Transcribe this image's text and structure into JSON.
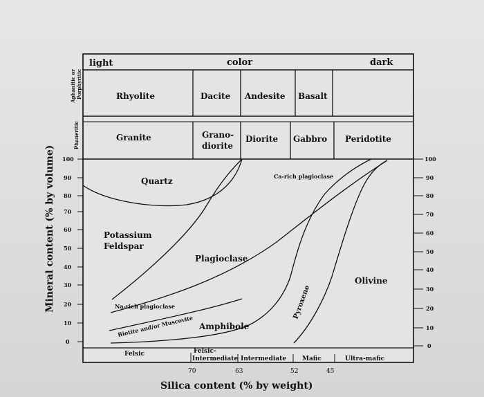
{
  "header": {
    "left": "light",
    "center": "color",
    "right": "dark"
  },
  "texture_labels": {
    "fine": "Aphanitic or Porphyritic",
    "coarse": "Phaneritic"
  },
  "rocks_fine": [
    "Rhyolite",
    "Dacite",
    "Andesite",
    "Basalt"
  ],
  "rocks_coarse": [
    "Granite",
    "Grano-diorite",
    "Diorite",
    "Gabbro",
    "Peridotite"
  ],
  "y_axis": {
    "label": "Mineral content (% by volume)",
    "ticks": [
      "100",
      "90",
      "80",
      "70",
      "60",
      "50",
      "40",
      "30",
      "20",
      "10",
      "0"
    ]
  },
  "minerals": {
    "quartz": "Quartz",
    "potassium_feldspar_1": "Potassium",
    "potassium_feldspar_2": "Feldspar",
    "plagioclase": "Plagioclase",
    "ca_plagioclase": "Ca-rich plagioclase",
    "na_plagioclase": "Na-rich plagioclase",
    "biotite": "Biotite and/or Muscovite",
    "amphibole": "Amphibole",
    "pyroxene": "Pyroxene",
    "olivine": "Olivine"
  },
  "composition": {
    "felsic": "Felsic",
    "felsic_intermediate_1": "Felsic-",
    "felsic_intermediate_2": "Intermediate",
    "intermediate": "Intermediate",
    "mafic": "Mafic",
    "ultramafic": "Ultra-mafic"
  },
  "silica_ticks": [
    "70",
    "63",
    "52",
    "45"
  ],
  "x_axis_label": "Silica content (% by weight)"
}
